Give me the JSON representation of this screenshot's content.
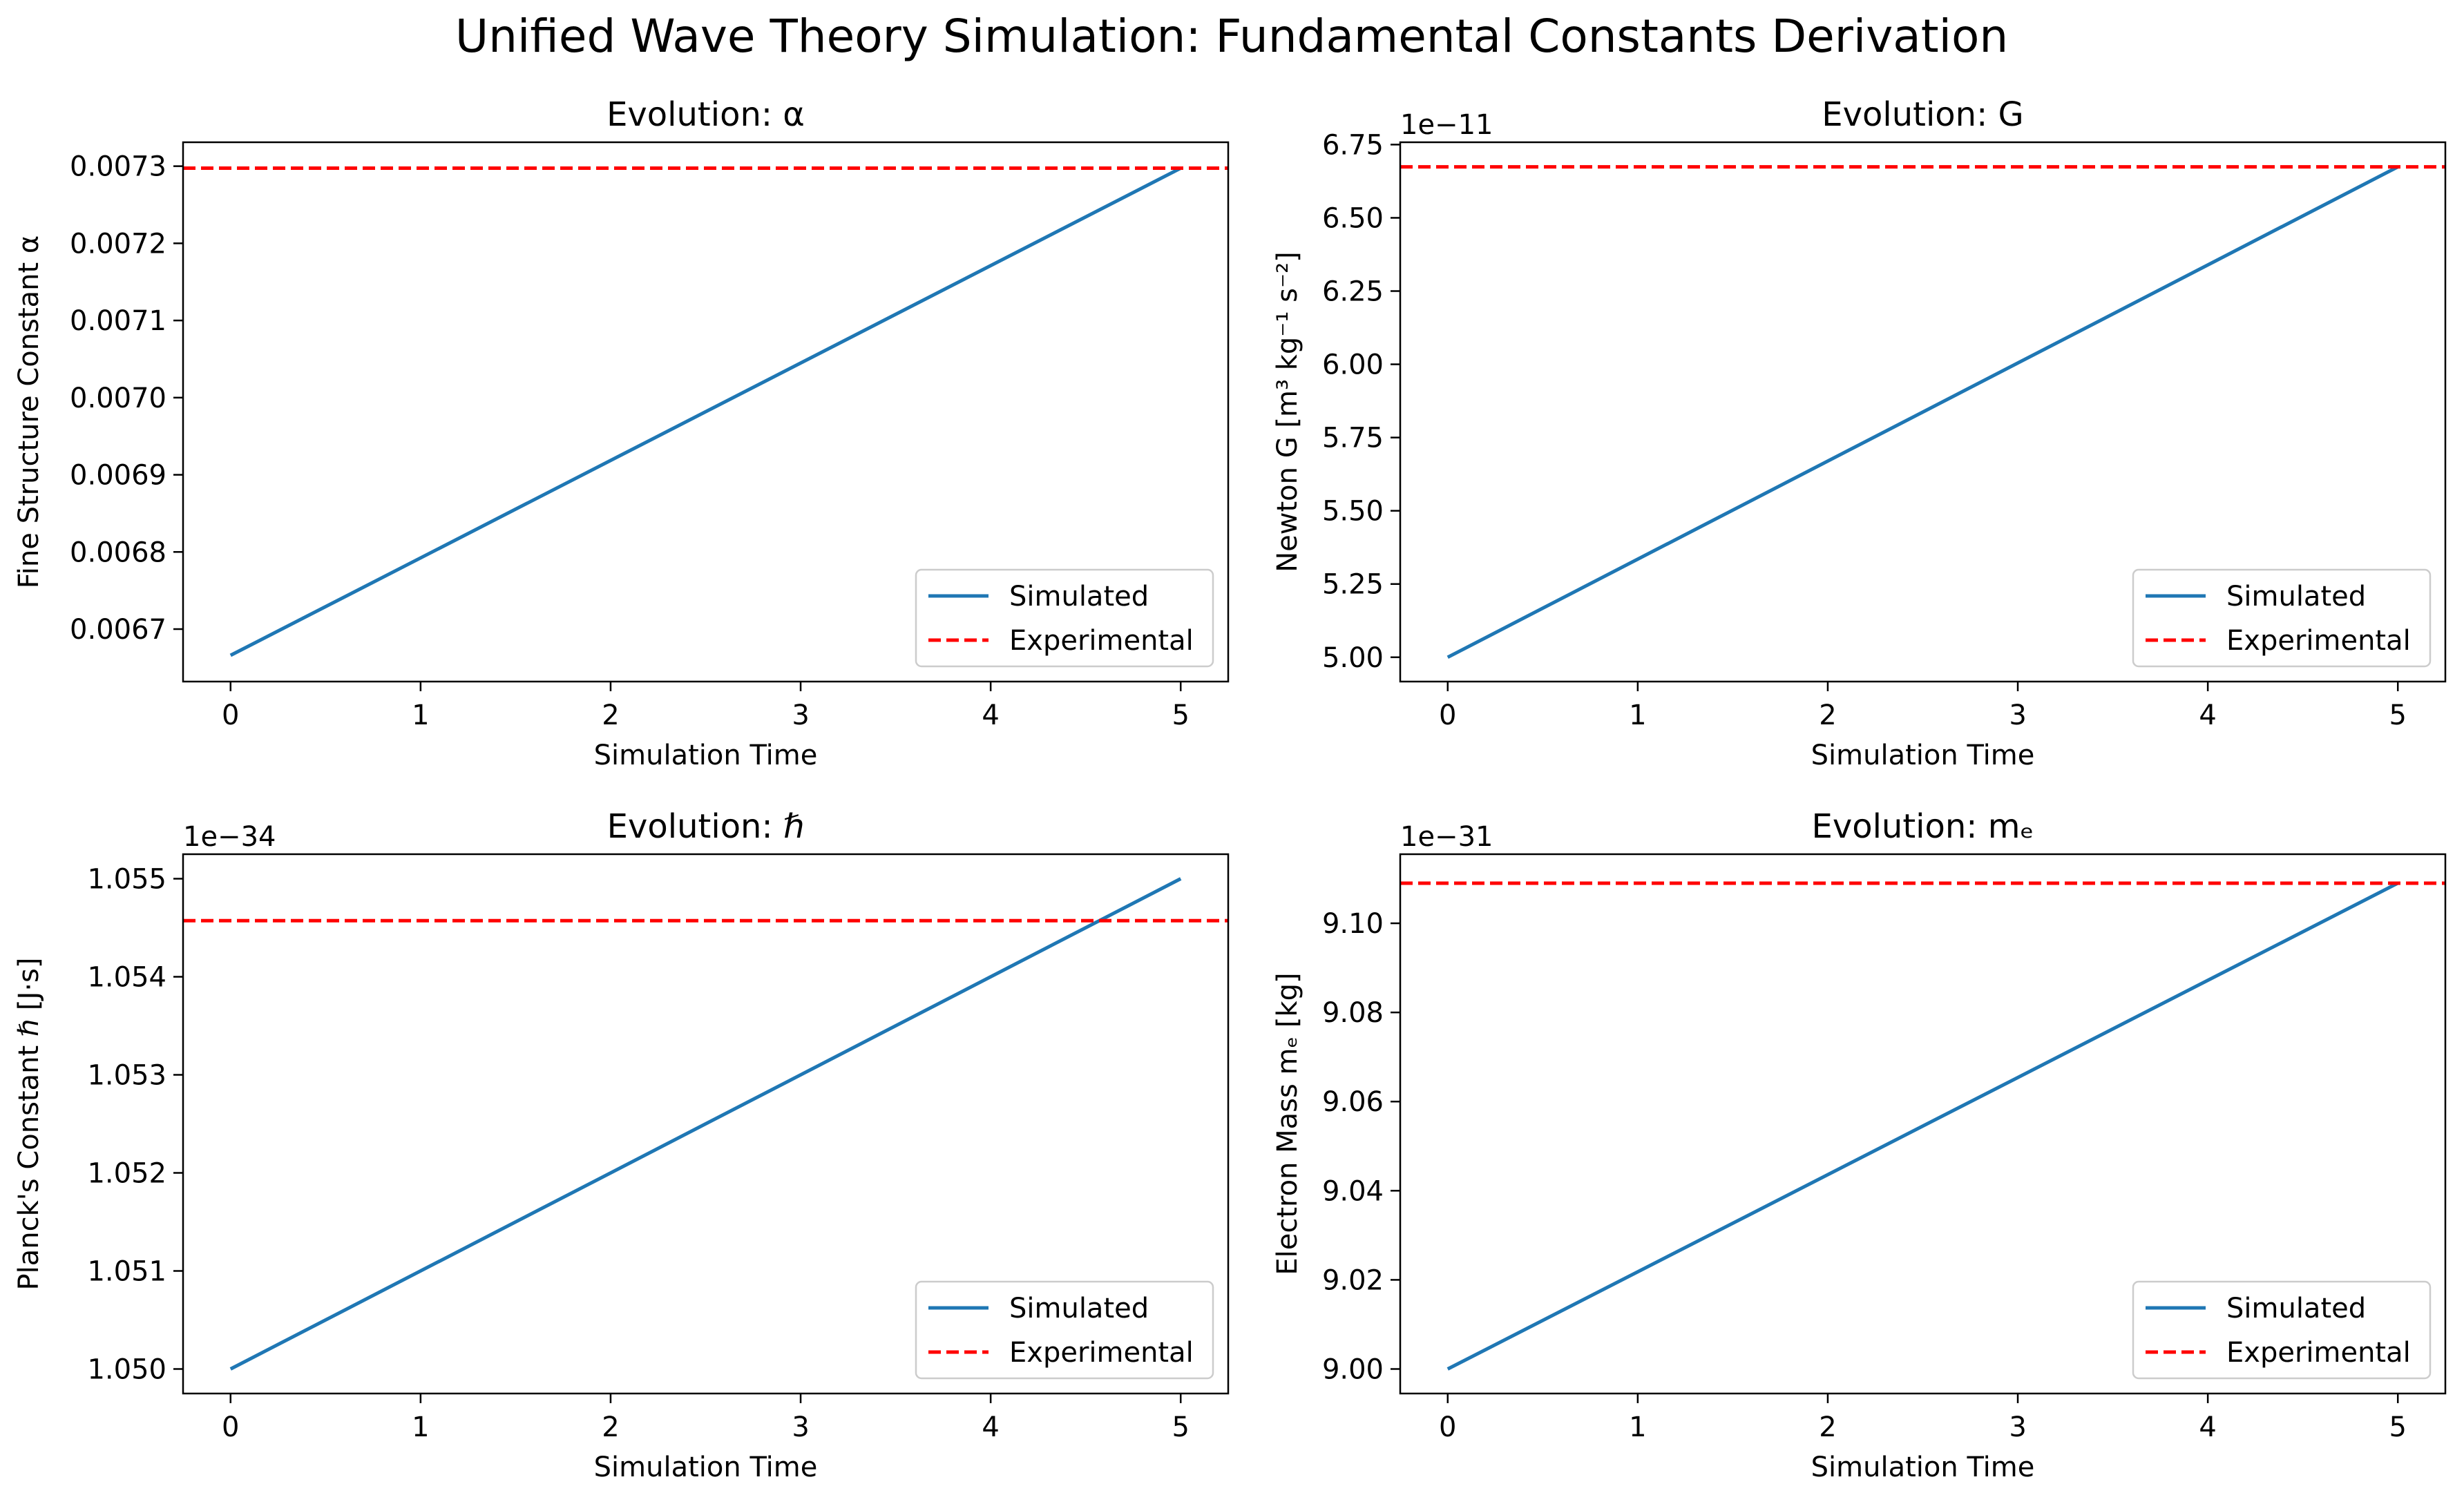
{
  "figure": {
    "suptitle": "Unified Wave Theory Simulation: Fundamental Constants Derivation",
    "colors": {
      "simulated": "#1f77b4",
      "experimental": "#ff0000",
      "axes": "#000000",
      "background": "#ffffff"
    }
  },
  "chart_data": [
    {
      "type": "line",
      "title": "Evolution: α",
      "xlabel": "Simulation Time",
      "ylabel": "Fine Structure Constant α",
      "offset_text": "",
      "xlim": [
        -0.25,
        5.25
      ],
      "ylim": [
        0.006632,
        0.007331
      ],
      "xticks": [
        0,
        1,
        2,
        3,
        4,
        5
      ],
      "xtick_labels": [
        "0",
        "1",
        "2",
        "3",
        "4",
        "5"
      ],
      "yticks": [
        0.0067,
        0.0068,
        0.0069,
        0.007,
        0.0071,
        0.0072,
        0.0073
      ],
      "ytick_labels": [
        "0.0067",
        "0.0068",
        "0.0069",
        "0.0070",
        "0.0071",
        "0.0072",
        "0.0073"
      ],
      "legend": {
        "position": "lower-right",
        "entries": [
          "Simulated",
          "Experimental"
        ]
      },
      "grid": false,
      "series": [
        {
          "name": "Simulated",
          "style": "solid",
          "x": [
            0,
            5
          ],
          "y": [
            0.006666,
            0.0072974
          ]
        },
        {
          "name": "Experimental",
          "style": "dashed",
          "hline": 0.0072974
        }
      ]
    },
    {
      "type": "line",
      "title": "Evolution: G",
      "xlabel": "Simulation Time",
      "ylabel": "Newton G [m³ kg⁻¹ s⁻²]",
      "offset_text": "1e−11",
      "xlim": [
        -0.25,
        5.25
      ],
      "ylim": [
        4.917,
        6.758
      ],
      "xticks": [
        0,
        1,
        2,
        3,
        4,
        5
      ],
      "xtick_labels": [
        "0",
        "1",
        "2",
        "3",
        "4",
        "5"
      ],
      "yticks": [
        5.0,
        5.25,
        5.5,
        5.75,
        6.0,
        6.25,
        6.5,
        6.75
      ],
      "ytick_labels": [
        "5.00",
        "5.25",
        "5.50",
        "5.75",
        "6.00",
        "6.25",
        "6.50",
        "6.75"
      ],
      "legend": {
        "position": "lower-right",
        "entries": [
          "Simulated",
          "Experimental"
        ]
      },
      "grid": false,
      "series": [
        {
          "name": "Simulated",
          "style": "solid",
          "x": [
            0,
            5
          ],
          "y": [
            5.0,
            6.674
          ]
        },
        {
          "name": "Experimental",
          "style": "dashed",
          "hline": 6.674
        }
      ]
    },
    {
      "type": "line",
      "title": "Evolution: ℏ",
      "xlabel": "Simulation Time",
      "ylabel": "Planck's Constant ℏ [J·s]",
      "offset_text": "1e−34",
      "xlim": [
        -0.25,
        5.25
      ],
      "ylim": [
        1.04975,
        1.05525
      ],
      "xticks": [
        0,
        1,
        2,
        3,
        4,
        5
      ],
      "xtick_labels": [
        "0",
        "1",
        "2",
        "3",
        "4",
        "5"
      ],
      "yticks": [
        1.05,
        1.051,
        1.052,
        1.053,
        1.054,
        1.055
      ],
      "ytick_labels": [
        "1.050",
        "1.051",
        "1.052",
        "1.053",
        "1.054",
        "1.055"
      ],
      "legend": {
        "position": "lower-right",
        "entries": [
          "Simulated",
          "Experimental"
        ]
      },
      "grid": false,
      "series": [
        {
          "name": "Simulated",
          "style": "solid",
          "x": [
            0,
            5
          ],
          "y": [
            1.05,
            1.055
          ]
        },
        {
          "name": "Experimental",
          "style": "dashed",
          "hline": 1.054572
        }
      ]
    },
    {
      "type": "line",
      "title": "Evolution: mₑ",
      "xlabel": "Simulation Time",
      "ylabel": "Electron Mass mₑ [kg]",
      "offset_text": "1e−31",
      "xlim": [
        -0.25,
        5.25
      ],
      "ylim": [
        8.9945,
        9.1155
      ],
      "xticks": [
        0,
        1,
        2,
        3,
        4,
        5
      ],
      "xtick_labels": [
        "0",
        "1",
        "2",
        "3",
        "4",
        "5"
      ],
      "yticks": [
        9.0,
        9.02,
        9.04,
        9.06,
        9.08,
        9.1
      ],
      "ytick_labels": [
        "9.00",
        "9.02",
        "9.04",
        "9.06",
        "9.08",
        "9.10"
      ],
      "legend": {
        "position": "lower-right",
        "entries": [
          "Simulated",
          "Experimental"
        ]
      },
      "grid": false,
      "series": [
        {
          "name": "Simulated",
          "style": "solid",
          "x": [
            0,
            5
          ],
          "y": [
            9.0,
            9.109
          ]
        },
        {
          "name": "Experimental",
          "style": "dashed",
          "hline": 9.109
        }
      ]
    }
  ]
}
